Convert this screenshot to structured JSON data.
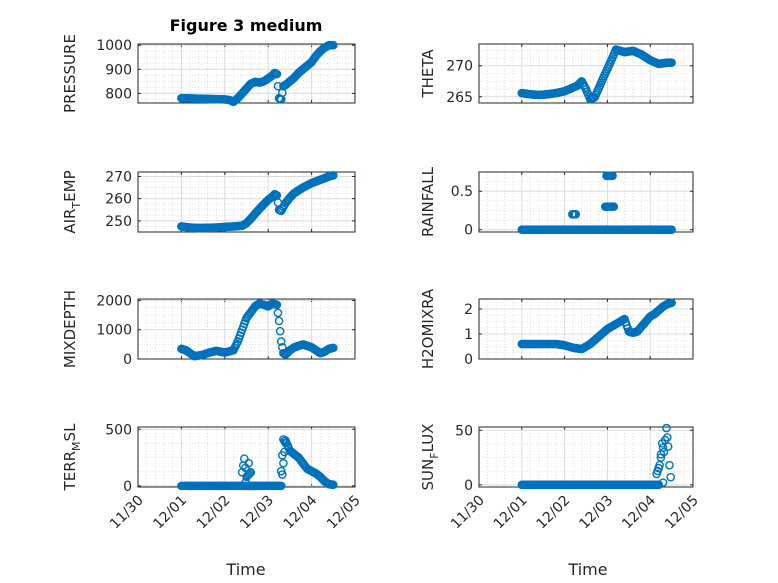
{
  "figure": {
    "title": "Figure 3 medium",
    "xlabel": "Time",
    "x_tick_labels": [
      "11/30",
      "12/01",
      "12/02",
      "12/03",
      "12/04",
      "12/05"
    ],
    "marker_color": "#0072BD"
  },
  "chart_data": [
    {
      "type": "scatter",
      "title": "Figure 3 medium",
      "ylabel": "PRESSURE",
      "ylabel_main": "PRESSURE",
      "ylabel_sub": "",
      "ylabel_tail": "",
      "xlim": [
        0,
        5
      ],
      "ylim": [
        760,
        1005
      ],
      "y_ticks": [
        800,
        900,
        1000
      ],
      "y_tick_labels": [
        "800",
        "900",
        "1000"
      ],
      "x": [
        1.0,
        1.2,
        1.4,
        1.6,
        1.8,
        2.0,
        2.1,
        2.2,
        2.3,
        2.4,
        2.5,
        2.6,
        2.7,
        2.8,
        2.9,
        3.0,
        3.1,
        3.15,
        3.2,
        3.25,
        3.3,
        3.35,
        3.4,
        3.5,
        3.6,
        3.7,
        3.8,
        3.9,
        4.0,
        4.1,
        4.2,
        4.3,
        4.4,
        4.5
      ],
      "y": [
        780,
        779,
        778,
        777,
        776,
        775,
        773,
        765,
        780,
        800,
        820,
        840,
        848,
        845,
        850,
        862,
        875,
        885,
        880,
        780,
        775,
        830,
        835,
        850,
        865,
        885,
        900,
        915,
        930,
        955,
        975,
        990,
        1000,
        1000
      ]
    },
    {
      "type": "scatter",
      "ylabel": "THETA",
      "ylabel_main": "THETA",
      "ylabel_sub": "",
      "ylabel_tail": "",
      "xlim": [
        0,
        5
      ],
      "ylim": [
        264,
        273.5
      ],
      "y_ticks": [
        265,
        270
      ],
      "y_tick_labels": [
        "265",
        "270"
      ],
      "x": [
        1.0,
        1.2,
        1.4,
        1.6,
        1.8,
        2.0,
        2.2,
        2.3,
        2.4,
        2.5,
        2.6,
        2.7,
        2.8,
        2.9,
        3.0,
        3.1,
        3.2,
        3.4,
        3.6,
        3.8,
        4.0,
        4.2,
        4.4,
        4.5
      ],
      "y": [
        265.6,
        265.4,
        265.3,
        265.4,
        265.6,
        265.9,
        266.5,
        266.8,
        267.5,
        266.2,
        264.6,
        264.9,
        266.4,
        268.0,
        269.5,
        271.0,
        272.6,
        272.2,
        272.4,
        271.8,
        270.9,
        270.3,
        270.5,
        270.5
      ]
    },
    {
      "type": "scatter",
      "ylabel": "AIR_TEMP",
      "ylabel_main": "AIR",
      "ylabel_sub": "T",
      "ylabel_tail": "EMP",
      "xlim": [
        0,
        5
      ],
      "ylim": [
        245,
        272
      ],
      "y_ticks": [
        250,
        260,
        270
      ],
      "y_tick_labels": [
        "250",
        "260",
        "270"
      ],
      "x": [
        1.0,
        1.2,
        1.4,
        1.6,
        1.8,
        2.0,
        2.2,
        2.4,
        2.5,
        2.6,
        2.8,
        2.9,
        3.0,
        3.1,
        3.15,
        3.2,
        3.25,
        3.3,
        3.4,
        3.5,
        3.6,
        3.8,
        4.0,
        4.2,
        4.4,
        4.5
      ],
      "y": [
        247.5,
        247.0,
        246.8,
        246.9,
        247.0,
        247.3,
        247.5,
        247.8,
        249.0,
        251.0,
        255.5,
        257.5,
        259.5,
        261.0,
        262.0,
        261.5,
        255.0,
        254.5,
        258.0,
        260.5,
        262.5,
        265.0,
        267.0,
        268.5,
        270.0,
        270.5
      ]
    },
    {
      "type": "scatter",
      "ylabel": "RAINFALL",
      "ylabel_main": "RAINFALL",
      "ylabel_sub": "",
      "ylabel_tail": "",
      "xlim": [
        0,
        5
      ],
      "ylim": [
        -0.03,
        0.75
      ],
      "y_ticks": [
        0,
        0.5
      ],
      "y_tick_labels": [
        "0",
        "0.5"
      ],
      "x": [
        1.0,
        1.2,
        1.4,
        1.6,
        1.8,
        2.0,
        2.2,
        2.4,
        2.6,
        2.8,
        3.0,
        3.2,
        3.4,
        3.6,
        3.8,
        4.0,
        4.2,
        4.4,
        4.5,
        2.18,
        2.26,
        2.95,
        3.02,
        3.1,
        3.15,
        2.98,
        3.12
      ],
      "y": [
        0,
        0,
        0,
        0,
        0,
        0,
        0,
        0,
        0,
        0,
        0,
        0,
        0,
        0,
        0,
        0,
        0,
        0,
        0,
        0.2,
        0.2,
        0.3,
        0.3,
        0.3,
        0.3,
        0.7,
        0.7
      ]
    },
    {
      "type": "scatter",
      "ylabel": "MIXDEPTH",
      "ylabel_main": "MIXDEPTH",
      "ylabel_sub": "",
      "ylabel_tail": "",
      "xlim": [
        0,
        5
      ],
      "ylim": [
        0,
        2050
      ],
      "y_ticks": [
        0,
        1000,
        2000
      ],
      "y_tick_labels": [
        "0",
        "1000",
        "2000"
      ],
      "x": [
        1.0,
        1.1,
        1.2,
        1.3,
        1.4,
        1.5,
        1.6,
        1.8,
        2.0,
        2.2,
        2.3,
        2.4,
        2.5,
        2.6,
        2.7,
        2.8,
        2.9,
        3.0,
        3.1,
        3.2,
        3.25,
        3.3,
        3.35,
        3.4,
        3.5,
        3.6,
        3.7,
        3.8,
        3.9,
        4.0,
        4.1,
        4.2,
        4.3,
        4.4,
        4.5
      ],
      "y": [
        350,
        300,
        200,
        100,
        120,
        150,
        200,
        280,
        220,
        300,
        600,
        1000,
        1400,
        1600,
        1800,
        1900,
        1850,
        1800,
        1900,
        1850,
        1300,
        600,
        200,
        150,
        300,
        400,
        450,
        500,
        450,
        400,
        300,
        200,
        250,
        350,
        380
      ]
    },
    {
      "type": "scatter",
      "ylabel": "H2OMIXRA",
      "ylabel_main": "H2OMIXRA",
      "ylabel_sub": "",
      "ylabel_tail": "",
      "xlim": [
        0,
        5
      ],
      "ylim": [
        0,
        2.4
      ],
      "y_ticks": [
        0,
        1,
        2
      ],
      "y_tick_labels": [
        "0",
        "1",
        "2"
      ],
      "x": [
        1.0,
        1.2,
        1.4,
        1.6,
        1.8,
        2.0,
        2.2,
        2.4,
        2.6,
        2.8,
        3.0,
        3.1,
        3.2,
        3.3,
        3.4,
        3.5,
        3.6,
        3.7,
        3.8,
        3.9,
        4.0,
        4.1,
        4.2,
        4.3,
        4.4,
        4.5
      ],
      "y": [
        0.6,
        0.6,
        0.6,
        0.6,
        0.6,
        0.55,
        0.45,
        0.4,
        0.6,
        0.9,
        1.2,
        1.3,
        1.4,
        1.5,
        1.6,
        1.1,
        1.05,
        1.1,
        1.3,
        1.5,
        1.7,
        1.8,
        1.95,
        2.1,
        2.2,
        2.25
      ]
    },
    {
      "type": "scatter",
      "ylabel": "TERR_MSL",
      "ylabel_main": "TERR",
      "ylabel_sub": "M",
      "ylabel_tail": "SL",
      "xlim": [
        0,
        5
      ],
      "ylim": [
        -10,
        520
      ],
      "y_ticks": [
        0,
        500
      ],
      "y_tick_labels": [
        "0",
        "500"
      ],
      "x": [
        1.0,
        1.2,
        1.4,
        1.6,
        1.8,
        2.0,
        2.2,
        2.4,
        2.6,
        2.8,
        3.0,
        3.2,
        3.3,
        3.4,
        3.5,
        3.6,
        3.7,
        3.8,
        3.9,
        4.0,
        4.1,
        4.2,
        4.3,
        4.4,
        4.5,
        2.4,
        2.45,
        2.5,
        2.6,
        2.55,
        2.48,
        3.3,
        3.35,
        3.4
      ],
      "y": [
        0,
        0,
        0,
        0,
        0,
        0,
        0,
        0,
        0,
        0,
        0,
        0,
        0,
        400,
        310,
        280,
        250,
        200,
        150,
        130,
        110,
        80,
        40,
        15,
        10,
        120,
        240,
        80,
        120,
        200,
        30,
        130,
        410,
        380
      ]
    },
    {
      "type": "scatter",
      "ylabel": "SUN_FLUX",
      "ylabel_main": "SUN",
      "ylabel_sub": "F",
      "ylabel_tail": "LUX",
      "xlim": [
        0,
        5
      ],
      "ylim": [
        -2,
        53
      ],
      "y_ticks": [
        0,
        50
      ],
      "y_tick_labels": [
        "0",
        "50"
      ],
      "x": [
        1.0,
        1.2,
        1.4,
        1.6,
        1.8,
        2.0,
        2.2,
        2.4,
        2.6,
        2.8,
        3.0,
        3.2,
        3.4,
        3.6,
        3.8,
        4.0,
        4.1,
        4.2,
        4.15,
        4.22,
        4.28,
        4.32,
        4.38,
        4.42,
        4.45,
        4.48,
        4.3,
        4.25
      ],
      "y": [
        0,
        0,
        0,
        0,
        0,
        0,
        0,
        0,
        0,
        0,
        0,
        0,
        0,
        0,
        0,
        0,
        0,
        0,
        10,
        18,
        38,
        30,
        52,
        35,
        18,
        7,
        2,
        25
      ]
    }
  ]
}
